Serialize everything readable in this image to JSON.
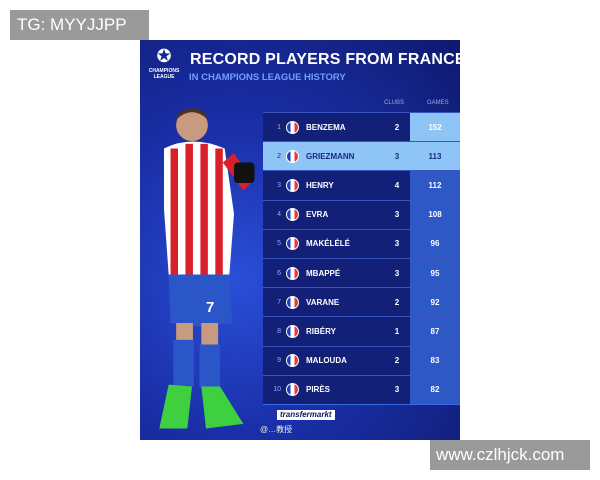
{
  "watermark_top": "TG: MYYJJPP",
  "watermark_bottom": "www.czlhjck.com",
  "poster": {
    "logo_text": "CHAMPIONS LEAGUE",
    "title": "RECORD PLAYERS FROM FRANCE",
    "subtitle": "IN CHAMPIONS LEAGUE HISTORY",
    "col_clubs": "CLUBS",
    "col_games": "GAMES",
    "rows": [
      {
        "rank": "1",
        "name": "BENZEMA",
        "clubs": "2",
        "games": "152"
      },
      {
        "rank": "2",
        "name": "GRIEZMANN",
        "clubs": "3",
        "games": "113"
      },
      {
        "rank": "3",
        "name": "HENRY",
        "clubs": "4",
        "games": "112"
      },
      {
        "rank": "4",
        "name": "EVRA",
        "clubs": "3",
        "games": "108"
      },
      {
        "rank": "5",
        "name": "MAKÉLÉLÉ",
        "clubs": "3",
        "games": "96"
      },
      {
        "rank": "6",
        "name": "MBAPPÉ",
        "clubs": "3",
        "games": "95"
      },
      {
        "rank": "7",
        "name": "VARANE",
        "clubs": "2",
        "games": "92"
      },
      {
        "rank": "8",
        "name": "RIBÉRY",
        "clubs": "1",
        "games": "87"
      },
      {
        "rank": "9",
        "name": "MALOUDA",
        "clubs": "2",
        "games": "83"
      },
      {
        "rank": "10",
        "name": "PIRÈS",
        "clubs": "3",
        "games": "82"
      }
    ],
    "highlighted_rank": "2",
    "source_logo": "transfermarkt",
    "weibo_credit": "@…教授",
    "player_number": "7"
  }
}
